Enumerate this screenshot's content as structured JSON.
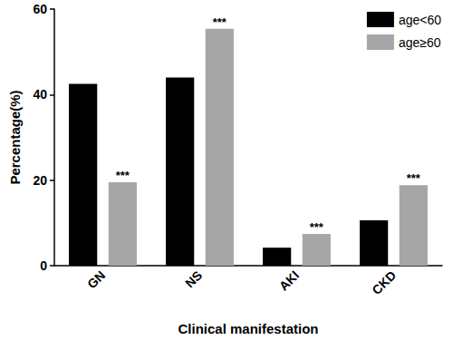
{
  "chart_data": {
    "type": "bar",
    "x_label": "Clinical manifestation",
    "y_label": "Percentage(%)",
    "categories": [
      "GN",
      "NS",
      "AKI",
      "CKD"
    ],
    "series": [
      {
        "name": "age<60",
        "color": "#000000",
        "values": [
          42.5,
          44.0,
          4.2,
          10.6
        ]
      },
      {
        "name": "age≥60",
        "color": "#a6a6a6",
        "values": [
          19.5,
          55.4,
          7.4,
          18.8
        ]
      }
    ],
    "annotations": [
      {
        "category": "GN",
        "series": "age≥60",
        "text": "***"
      },
      {
        "category": "NS",
        "series": "age≥60",
        "text": "***"
      },
      {
        "category": "AKI",
        "series": "age≥60",
        "text": "***"
      },
      {
        "category": "CKD",
        "series": "age≥60",
        "text": "***"
      }
    ],
    "ylim": [
      0,
      60
    ],
    "yticks": [
      0,
      20,
      40,
      60
    ],
    "grid": false,
    "legend": "upper right"
  }
}
